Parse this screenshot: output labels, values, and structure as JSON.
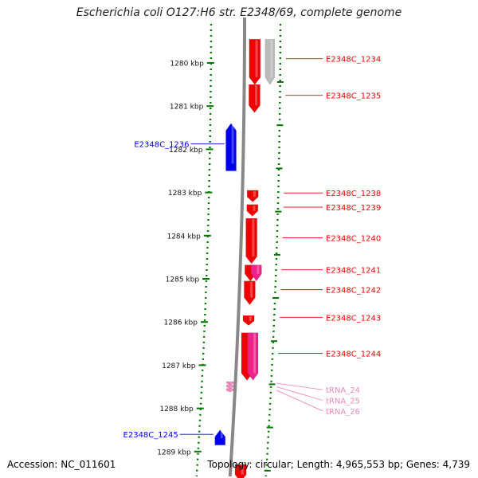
{
  "title": "Escherichia coli O127:H6 str. E2348/69, complete genome",
  "footer": {
    "accession": "Accession: NC_011601",
    "stats": "Topology: circular; Length: 4,965,553 bp; Genes: 4,739"
  },
  "colors": {
    "forward_gene": "#ee0000",
    "reverse_gene": "#0000ee",
    "trna": "#ee88bb",
    "pseudo": "#bbbbbb",
    "hypothetical": "#ee2288",
    "ruler": "#007700",
    "backbone": "#888888"
  },
  "ticks": [
    {
      "label": "1280 kbp",
      "kbp": 1280
    },
    {
      "label": "1281 kbp",
      "kbp": 1281
    },
    {
      "label": "1282 kbp",
      "kbp": 1282
    },
    {
      "label": "1283 kbp",
      "kbp": 1283
    },
    {
      "label": "1284 kbp",
      "kbp": 1284
    },
    {
      "label": "1285 kbp",
      "kbp": 1285
    },
    {
      "label": "1286 kbp",
      "kbp": 1286
    },
    {
      "label": "1287 kbp",
      "kbp": 1287
    },
    {
      "label": "1288 kbp",
      "kbp": 1288
    },
    {
      "label": "1289 kbp",
      "kbp": 1289
    }
  ],
  "genes": [
    {
      "label": "E2348C_1234",
      "strand": "+",
      "type": "gene",
      "start_kbp": 1279.45,
      "end_kbp": 1280.5
    },
    {
      "label": "",
      "strand": "+",
      "type": "pseudo",
      "start_kbp": 1279.45,
      "end_kbp": 1280.5
    },
    {
      "label": "E2348C_1235",
      "strand": "+",
      "type": "gene",
      "start_kbp": 1280.5,
      "end_kbp": 1281.15
    },
    {
      "label": "E2348C_1236",
      "strand": "-",
      "type": "gene",
      "start_kbp": 1281.4,
      "end_kbp": 1282.5
    },
    {
      "label": "E2348C_1238",
      "strand": "+",
      "type": "gene",
      "start_kbp": 1282.95,
      "end_kbp": 1283.22
    },
    {
      "label": "E2348C_1239",
      "strand": "+",
      "type": "gene",
      "start_kbp": 1283.28,
      "end_kbp": 1283.55
    },
    {
      "label": "E2348C_1240",
      "strand": "+",
      "type": "gene",
      "start_kbp": 1283.6,
      "end_kbp": 1284.65
    },
    {
      "label": "E2348C_1241",
      "strand": "+",
      "type": "gene",
      "start_kbp": 1284.68,
      "end_kbp": 1285.05
    },
    {
      "label": "",
      "strand": "+",
      "type": "hypothetical",
      "start_kbp": 1284.68,
      "end_kbp": 1285.05
    },
    {
      "label": "E2348C_1242",
      "strand": "+",
      "type": "gene",
      "start_kbp": 1285.05,
      "end_kbp": 1285.6
    },
    {
      "label": "E2348C_1243",
      "strand": "+",
      "type": "gene",
      "start_kbp": 1285.85,
      "end_kbp": 1286.08
    },
    {
      "label": "E2348C_1244",
      "strand": "+",
      "type": "gene",
      "start_kbp": 1286.25,
      "end_kbp": 1287.35
    },
    {
      "label": "",
      "strand": "+",
      "type": "hypothetical",
      "start_kbp": 1286.25,
      "end_kbp": 1287.35
    },
    {
      "label": "tRNA_24",
      "strand": "+",
      "type": "trna",
      "start_kbp": 1287.38,
      "end_kbp": 1287.46
    },
    {
      "label": "tRNA_25",
      "strand": "+",
      "type": "trna",
      "start_kbp": 1287.46,
      "end_kbp": 1287.54
    },
    {
      "label": "tRNA_26",
      "strand": "+",
      "type": "trna",
      "start_kbp": 1287.54,
      "end_kbp": 1287.62
    },
    {
      "label": "E2348C_1245",
      "strand": "-",
      "type": "gene",
      "start_kbp": 1288.5,
      "end_kbp": 1288.85
    },
    {
      "label": "",
      "strand": "+",
      "type": "gene",
      "start_kbp": 1289.3,
      "end_kbp": 1289.7
    }
  ]
}
